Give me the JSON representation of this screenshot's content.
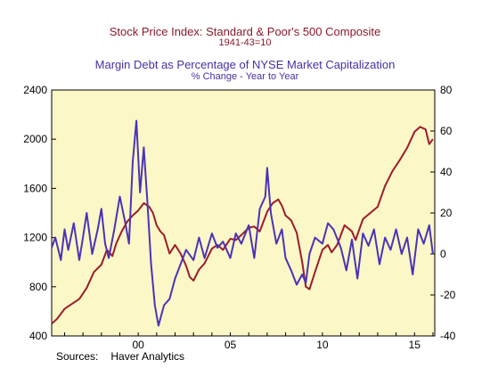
{
  "titles": {
    "series1_title": "Stock Price Index: Standard & Poor's 500 Composite",
    "series1_subtitle": "1941-43=10",
    "series2_title": "Margin Debt as Percentage of NYSE Market Capitalization",
    "series2_subtitle": "% Change - Year to Year"
  },
  "footer": {
    "sources_label": "Sources:",
    "sources_value": "Haver Analytics"
  },
  "colors": {
    "plot_bg": "#fbf7c6",
    "sp500": "#9b1c2e",
    "margin": "#4a33b8"
  },
  "chart_data": {
    "type": "line",
    "x_label_years": [
      "00",
      "05",
      "10",
      "15"
    ],
    "x_range": [
      1995.3,
      2016.1
    ],
    "x_ticks": [
      1995,
      1996,
      1997,
      1998,
      1999,
      2000,
      2001,
      2002,
      2003,
      2004,
      2005,
      2006,
      2007,
      2008,
      2009,
      2010,
      2011,
      2012,
      2013,
      2014,
      2015,
      2016
    ],
    "x_tick_labels": [
      {
        "x": 2000,
        "label": "00"
      },
      {
        "x": 2005,
        "label": "05"
      },
      {
        "x": 2010,
        "label": "10"
      },
      {
        "x": 2015,
        "label": "15"
      }
    ],
    "left_axis": {
      "ylim": [
        400,
        2400
      ],
      "ticks": [
        400,
        800,
        1200,
        1600,
        2000,
        2400
      ]
    },
    "right_axis": {
      "ylim": [
        -40,
        80
      ],
      "ticks": [
        -40,
        -20,
        0,
        20,
        40,
        60,
        80
      ]
    },
    "series": [
      {
        "axis": "left",
        "color": "#9b1c2e",
        "x": [
          1995.3,
          1995.6,
          1996.0,
          1996.4,
          1996.8,
          1997.2,
          1997.6,
          1998.0,
          1998.3,
          1998.6,
          1998.8,
          1999.1,
          1999.4,
          1999.7,
          2000.0,
          2000.3,
          2000.6,
          2000.8,
          2001.0,
          2001.2,
          2001.4,
          2001.7,
          2002.0,
          2002.3,
          2002.6,
          2002.8,
          2003.0,
          2003.3,
          2003.6,
          2004.0,
          2004.3,
          2004.6,
          2005.0,
          2005.3,
          2005.6,
          2006.0,
          2006.3,
          2006.6,
          2007.0,
          2007.3,
          2007.6,
          2007.8,
          2008.0,
          2008.3,
          2008.6,
          2008.9,
          2009.1,
          2009.3,
          2009.6,
          2010.0,
          2010.3,
          2010.5,
          2010.8,
          2011.2,
          2011.6,
          2011.8,
          2012.2,
          2012.6,
          2013.0,
          2013.4,
          2013.8,
          2014.2,
          2014.6,
          2015.0,
          2015.3,
          2015.6,
          2015.8,
          2016.0
        ],
        "values": [
          500,
          540,
          620,
          660,
          700,
          790,
          920,
          980,
          1100,
          1050,
          1150,
          1250,
          1330,
          1380,
          1420,
          1480,
          1450,
          1400,
          1300,
          1250,
          1220,
          1070,
          1140,
          1070,
          970,
          880,
          850,
          940,
          990,
          1110,
          1140,
          1100,
          1190,
          1180,
          1220,
          1280,
          1290,
          1250,
          1410,
          1480,
          1510,
          1460,
          1380,
          1340,
          1240,
          1000,
          800,
          780,
          920,
          1100,
          1140,
          1080,
          1140,
          1300,
          1250,
          1180,
          1350,
          1400,
          1450,
          1620,
          1740,
          1830,
          1930,
          2060,
          2100,
          2080,
          1960,
          2000
        ]
      },
      {
        "axis": "right",
        "color": "#4a33b8",
        "x": [
          1995.3,
          1995.5,
          1995.8,
          1996.0,
          1996.2,
          1996.5,
          1996.8,
          1997.0,
          1997.2,
          1997.5,
          1997.8,
          1998.0,
          1998.2,
          1998.4,
          1998.7,
          1999.0,
          1999.3,
          1999.5,
          1999.7,
          1999.9,
          2000.1,
          2000.3,
          2000.5,
          2000.7,
          2000.9,
          2001.1,
          2001.4,
          2001.7,
          2002.0,
          2002.3,
          2002.6,
          2003.0,
          2003.3,
          2003.6,
          2004.0,
          2004.3,
          2004.6,
          2005.0,
          2005.3,
          2005.6,
          2006.0,
          2006.3,
          2006.6,
          2006.9,
          2007.0,
          2007.2,
          2007.5,
          2007.8,
          2008.0,
          2008.3,
          2008.6,
          2008.9,
          2009.1,
          2009.3,
          2009.6,
          2010.0,
          2010.3,
          2010.6,
          2011.0,
          2011.3,
          2011.6,
          2011.9,
          2012.2,
          2012.5,
          2012.8,
          2013.1,
          2013.4,
          2013.7,
          2014.0,
          2014.3,
          2014.6,
          2014.9,
          2015.2,
          2015.5,
          2015.8,
          2016.0
        ],
        "values": [
          3,
          8,
          -3,
          12,
          2,
          15,
          -3,
          8,
          20,
          0,
          12,
          22,
          5,
          -2,
          12,
          28,
          15,
          5,
          45,
          65,
          30,
          52,
          25,
          -5,
          -25,
          -35,
          -25,
          -22,
          -12,
          -5,
          2,
          -3,
          8,
          -2,
          10,
          3,
          6,
          -2,
          10,
          5,
          14,
          -2,
          22,
          28,
          42,
          20,
          5,
          12,
          -2,
          -8,
          -15,
          -10,
          -14,
          0,
          8,
          5,
          15,
          12,
          3,
          -8,
          7,
          -12,
          10,
          4,
          12,
          -5,
          8,
          2,
          12,
          0,
          8,
          -10,
          12,
          5,
          14,
          0
        ]
      }
    ]
  }
}
